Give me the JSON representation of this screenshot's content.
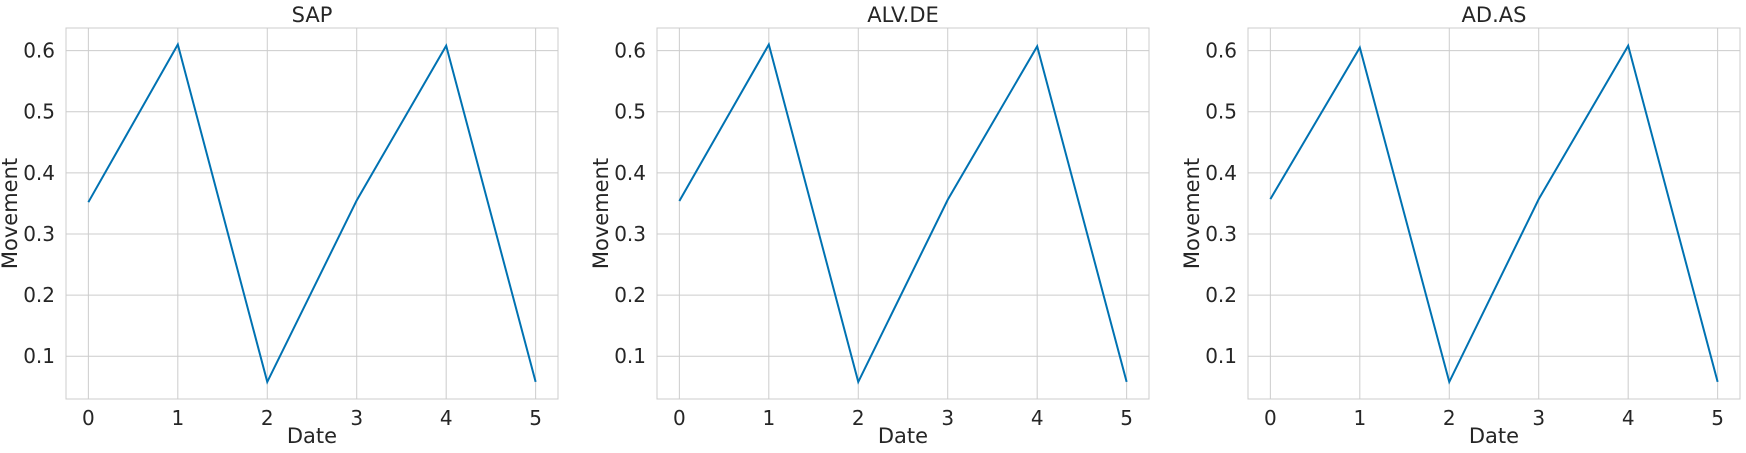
{
  "chart_data": [
    {
      "type": "line",
      "title": "SAP",
      "xlabel": "Date",
      "ylabel": "Movement",
      "x": [
        0,
        1,
        2,
        3,
        4,
        5
      ],
      "series": [
        {
          "values": [
            0.352,
            0.61,
            0.058,
            0.355,
            0.608,
            0.058
          ]
        }
      ],
      "xticks": [
        "0",
        "1",
        "2",
        "3",
        "4",
        "5"
      ],
      "yticks": [
        "0.1",
        "0.2",
        "0.3",
        "0.4",
        "0.5",
        "0.6"
      ],
      "xlim": [
        -0.25,
        5.25
      ],
      "ylim": [
        0.03,
        0.637
      ],
      "grid": true,
      "color": "#0072b2"
    },
    {
      "type": "line",
      "title": "ALV.DE",
      "xlabel": "Date",
      "ylabel": "Movement",
      "x": [
        0,
        1,
        2,
        3,
        4,
        5
      ],
      "series": [
        {
          "values": [
            0.354,
            0.61,
            0.058,
            0.356,
            0.607,
            0.058
          ]
        }
      ],
      "xticks": [
        "0",
        "1",
        "2",
        "3",
        "4",
        "5"
      ],
      "yticks": [
        "0.1",
        "0.2",
        "0.3",
        "0.4",
        "0.5",
        "0.6"
      ],
      "xlim": [
        -0.25,
        5.25
      ],
      "ylim": [
        0.03,
        0.637
      ],
      "grid": true,
      "color": "#0072b2"
    },
    {
      "type": "line",
      "title": "AD.AS",
      "xlabel": "Date",
      "ylabel": "Movement",
      "x": [
        0,
        1,
        2,
        3,
        4,
        5
      ],
      "series": [
        {
          "values": [
            0.357,
            0.605,
            0.058,
            0.357,
            0.608,
            0.058
          ]
        }
      ],
      "xticks": [
        "0",
        "1",
        "2",
        "3",
        "4",
        "5"
      ],
      "yticks": [
        "0.1",
        "0.2",
        "0.3",
        "0.4",
        "0.5",
        "0.6"
      ],
      "xlim": [
        -0.25,
        5.25
      ],
      "ylim": [
        0.03,
        0.637
      ],
      "grid": true,
      "color": "#0072b2"
    }
  ]
}
